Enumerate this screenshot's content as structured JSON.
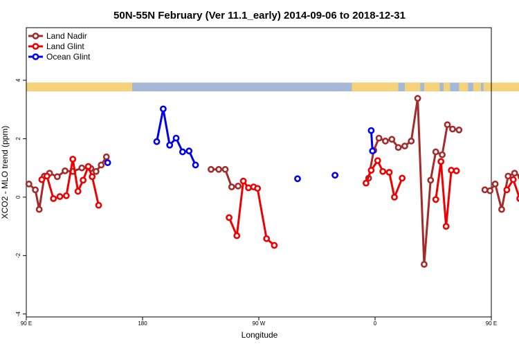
{
  "chart_data": {
    "type": "line",
    "title": "50N-55N February (Ver 11.1_early)   2014-09-06 to 2018-12-31",
    "xlabel": "Longitude",
    "ylabel": "XCO2 - MLO trend (ppm)",
    "xlim": [
      90,
      450
    ],
    "ylim": [
      -4.1,
      5.8
    ],
    "x_ticks": [
      {
        "value": 90,
        "label": "90 E"
      },
      {
        "value": 180,
        "label": "180"
      },
      {
        "value": 270,
        "label": "90 W"
      },
      {
        "value": 360,
        "label": "0"
      },
      {
        "value": 450,
        "label": "90 E"
      },
      {
        "value": 540,
        "label": "180"
      }
    ],
    "y_ticks": [
      {
        "value": -4,
        "label": "-4"
      },
      {
        "value": -2,
        "label": "-2"
      },
      {
        "value": 0,
        "label": "0"
      },
      {
        "value": 2,
        "label": "2"
      },
      {
        "value": 4,
        "label": "4"
      }
    ],
    "grid": false,
    "legend_position": "top-left",
    "land_strip_colors": {
      "land": "#f4d27a",
      "ocean": "#a4b9d8"
    },
    "series": [
      {
        "name": "Land Nadir",
        "color": "#a52a2a",
        "segments": [
          {
            "x": [
              92,
              97,
              100,
              104,
              108,
              114,
              120,
              126,
              133,
              140,
              144,
              148,
              152
            ],
            "y": [
              0.45,
              0.25,
              -0.42,
              0.72,
              0.82,
              0.7,
              0.9,
              0.88,
              1.0,
              0.98,
              0.88,
              1.1,
              1.38
            ]
          },
          {
            "x": [
              233,
              239,
              244,
              249,
              254
            ],
            "y": [
              0.95,
              0.95,
              0.95,
              0.35,
              0.38
            ]
          },
          {
            "x": [
              355,
              359,
              363,
              368,
              373,
              378,
              383,
              388,
              393,
              398,
              403,
              407,
              412,
              416,
              420,
              425
            ],
            "y": [
              0.65,
              1.6,
              2.02,
              1.92,
              1.98,
              1.7,
              1.75,
              1.92,
              3.38,
              -2.3,
              0.58,
              1.55,
              1.45,
              2.48,
              2.33,
              2.3
            ]
          },
          {
            "x": [
              445,
              449,
              453,
              458,
              463,
              468,
              473,
              478,
              483,
              488,
              492,
              496,
              500
            ],
            "y": [
              0.25,
              0.22,
              0.45,
              -0.42,
              0.72,
              0.82,
              0.7,
              0.9,
              0.88,
              1.0,
              0.98,
              1.1,
              1.38
            ]
          }
        ]
      },
      {
        "name": "Land Glint",
        "color": "#ee0000",
        "segments": [
          {
            "x": [
              102,
              106,
              111,
              116,
              121,
              126,
              130,
              134,
              138,
              141,
              146
            ],
            "y": [
              0.6,
              0.72,
              -0.05,
              0.02,
              0.05,
              1.3,
              0.2,
              0.58,
              1.05,
              0.7,
              -0.28
            ]
          },
          {
            "x": [
              247,
              253,
              258,
              262,
              266,
              269,
              276,
              282
            ],
            "y": [
              -0.7,
              -1.32,
              0.55,
              0.32,
              0.35,
              0.3,
              -1.42,
              -1.65
            ]
          },
          {
            "x": [
              353,
              357,
              362,
              366,
              371,
              375,
              381
            ],
            "y": [
              0.48,
              0.92,
              1.25,
              0.88,
              0.85,
              0.0,
              0.65
            ]
          },
          {
            "x": [
              407,
              411,
              415,
              419,
              423
            ],
            "y": [
              -0.08,
              1.22,
              -1.0,
              0.92,
              0.9
            ]
          },
          {
            "x": [
              462,
              467,
              472,
              477,
              482,
              487,
              491,
              495,
              500
            ],
            "y": [
              0.25,
              0.6,
              -0.05,
              0.02,
              0.05,
              1.3,
              0.2,
              0.58,
              -0.28
            ]
          }
        ]
      },
      {
        "name": "Ocean Glint",
        "color": "#0000ee",
        "segments": [
          {
            "x": [
              153
            ],
            "y": [
              1.18
            ]
          },
          {
            "x": [
              191,
              196,
              201,
              206,
              211,
              216,
              221
            ],
            "y": [
              1.9,
              3.02,
              1.78,
              2.02,
              1.55,
              1.58,
              1.1
            ]
          },
          {
            "x": [
              300
            ],
            "y": [
              0.63
            ]
          },
          {
            "x": [
              329
            ],
            "y": [
              0.75
            ]
          },
          {
            "x": [
              357,
              358
            ],
            "y": [
              2.28,
              1.58
            ]
          },
          {
            "x": [
              497
            ],
            "y": [
              1.18
            ]
          }
        ]
      }
    ]
  }
}
